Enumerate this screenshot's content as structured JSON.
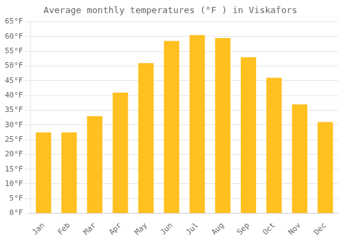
{
  "chart_data": {
    "type": "bar",
    "title": "Average monthly temperatures (°F ) in Viskafors",
    "categories": [
      "Jan",
      "Feb",
      "Mar",
      "Apr",
      "May",
      "Jun",
      "Jul",
      "Aug",
      "Sep",
      "Oct",
      "Nov",
      "Dec"
    ],
    "values": [
      27.5,
      27.5,
      33.0,
      41.0,
      51.0,
      58.5,
      60.5,
      59.5,
      53.0,
      46.0,
      37.0,
      31.0
    ],
    "color": "#FFC020",
    "ylim": [
      0,
      65
    ],
    "yticks": [
      {
        "value": 0,
        "label": "0°F"
      },
      {
        "value": 5,
        "label": "5°F"
      },
      {
        "value": 10,
        "label": "10°F"
      },
      {
        "value": 15,
        "label": "15°F"
      },
      {
        "value": 20,
        "label": "20°F"
      },
      {
        "value": 25,
        "label": "25°F"
      },
      {
        "value": 30,
        "label": "30°F"
      },
      {
        "value": 35,
        "label": "35°F"
      },
      {
        "value": 40,
        "label": "40°F"
      },
      {
        "value": 45,
        "label": "45°F"
      },
      {
        "value": 50,
        "label": "50°F"
      },
      {
        "value": 55,
        "label": "55°F"
      },
      {
        "value": 60,
        "label": "60°F"
      },
      {
        "value": 65,
        "label": "65°F"
      }
    ],
    "grid": true
  }
}
